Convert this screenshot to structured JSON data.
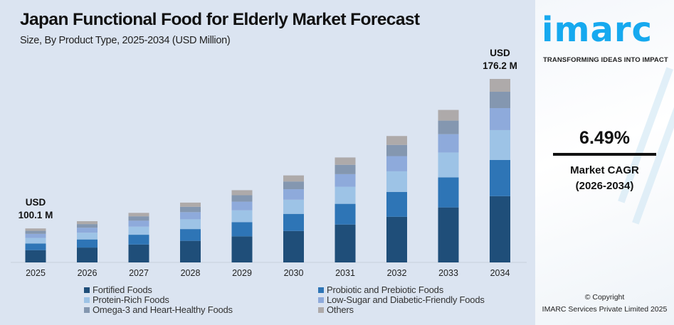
{
  "chart_data": {
    "type": "bar",
    "stacked": true,
    "title": "Japan Functional Food for Elderly Market Forecast",
    "subtitle": "Size, By Product Type, 2025-2034 (USD Million)",
    "categories": [
      "2025",
      "2026",
      "2027",
      "2028",
      "2029",
      "2030",
      "2031",
      "2032",
      "2033",
      "2034"
    ],
    "series": [
      {
        "name": "Fortified Foods",
        "color": "#1f4e79",
        "values": [
          36.1,
          38.5,
          41.0,
          43.6,
          46.5,
          49.5,
          52.7,
          56.1,
          59.7,
          63.6
        ]
      },
      {
        "name": "Probiotic and Prebiotic Foods",
        "color": "#2e75b6",
        "values": [
          19.7,
          21.0,
          22.4,
          23.8,
          25.4,
          27.0,
          28.8,
          30.6,
          32.6,
          34.7
        ]
      },
      {
        "name": "Protein-Rich Foods",
        "color": "#9dc3e6",
        "values": [
          16.3,
          17.4,
          18.5,
          19.7,
          21.0,
          22.3,
          23.8,
          25.3,
          27.0,
          28.7
        ]
      },
      {
        "name": "Low-Sugar and Diabetic-Friendly Foods",
        "color": "#8eaadb",
        "values": [
          12.0,
          12.8,
          13.6,
          14.5,
          15.4,
          16.5,
          17.5,
          18.7,
          19.9,
          21.1
        ]
      },
      {
        "name": "Omega-3 and Heart-Healthy Foods",
        "color": "#8497b0",
        "values": [
          8.9,
          9.5,
          10.1,
          10.8,
          11.5,
          12.2,
          13.0,
          13.8,
          14.7,
          15.7
        ]
      },
      {
        "name": "Others",
        "color": "#aeaaaa",
        "values": [
          7.0,
          7.5,
          7.9,
          8.5,
          9.0,
          9.6,
          10.2,
          10.9,
          11.6,
          12.3
        ]
      }
    ],
    "annotations": [
      {
        "category": "2025",
        "line1": "USD",
        "line2": "100.1 M"
      },
      {
        "category": "2034",
        "line1": "USD",
        "line2": "176.2 M"
      }
    ],
    "xlabel": "",
    "ylabel": "",
    "grid": false,
    "legend_position": "bottom"
  },
  "brand": {
    "logo": "imarc",
    "tagline": "TRANSFORMING IDEAS INTO IMPACT",
    "color": "#16a9ef"
  },
  "cagr": {
    "value": "6.49%",
    "label": "Market CAGR",
    "period": "(2026-2034)"
  },
  "copyright": {
    "line1": "© Copyright",
    "line2": "IMARC Services Private Limited 2025"
  }
}
